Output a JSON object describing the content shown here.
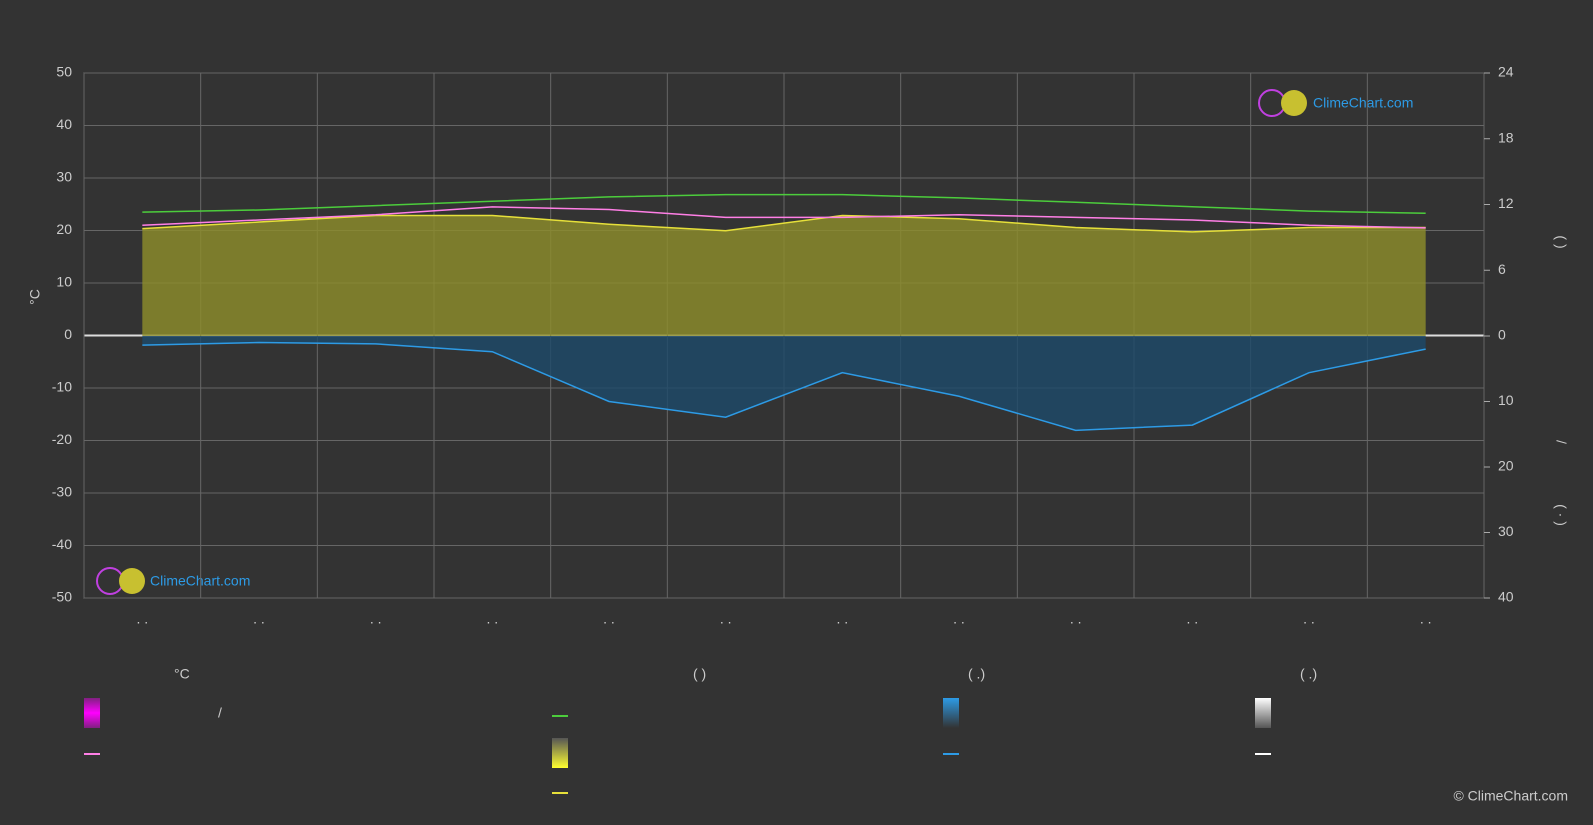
{
  "chart_data": {
    "type": "line",
    "categories": [
      ". .",
      ". .",
      ". .",
      ". .",
      ". .",
      ". .",
      ". .",
      ". .",
      ". .",
      ". .",
      ". .",
      ". ."
    ],
    "y_label": "°C",
    "y2_labels": [
      "(   )",
      "/",
      "( · )"
    ],
    "ylim": [
      -50,
      50
    ],
    "yticks": [
      -50,
      -40,
      -30,
      -20,
      -10,
      0,
      10,
      20,
      30,
      40,
      50
    ],
    "y2lim": [
      0,
      24
    ],
    "y2ticks": [
      0,
      6,
      12,
      18,
      24
    ],
    "y3lim": [
      0,
      40
    ],
    "y3ticks": [
      10,
      20,
      30,
      40
    ],
    "grid": true,
    "series": [
      {
        "name": "",
        "color": "#4ccd3c",
        "axis": "y2",
        "values": [
          11.3,
          11.5,
          11.9,
          12.3,
          12.7,
          12.9,
          12.9,
          12.6,
          12.2,
          11.8,
          11.4,
          11.2
        ]
      },
      {
        "name": "",
        "color": "#e6e03a",
        "axis": "y2",
        "area": "#8e8e2a",
        "values": [
          9.8,
          10.4,
          11.0,
          11.0,
          10.2,
          9.6,
          11.0,
          10.7,
          9.9,
          9.5,
          9.9,
          9.9
        ]
      },
      {
        "name": "",
        "color": "#ff7fe6",
        "axis": "y",
        "values": [
          21,
          22,
          23,
          24.5,
          24,
          22.5,
          22.5,
          23,
          22.5,
          22,
          21,
          20.5
        ]
      },
      {
        "name": "",
        "color": "#2d9be6",
        "axis": "y3",
        "area": "#1d4a6a",
        "values": [
          1.4,
          1.0,
          1.2,
          2.4,
          10,
          12.4,
          5.6,
          9.2,
          14.4,
          13.6,
          5.6,
          2.0
        ]
      }
    ],
    "legend_headers": [
      "°C",
      "(          )",
      "(   .)",
      "(   .)"
    ],
    "legend_slash": "/",
    "watermark": "ClimeChart.com",
    "copyright": "© ClimeChart.com"
  }
}
